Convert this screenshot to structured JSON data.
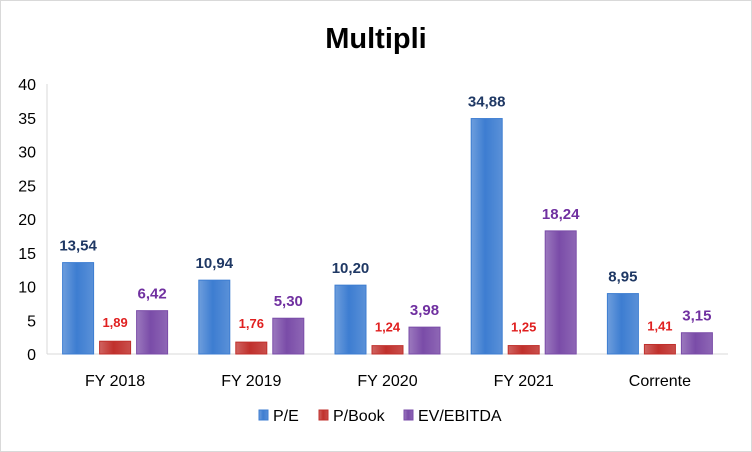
{
  "chart_data": {
    "type": "bar",
    "title": "Multipli",
    "categories": [
      "FY 2018",
      "FY 2019",
      "FY 2020",
      "FY 2021",
      "Corrente"
    ],
    "series": [
      {
        "name": "P/E",
        "values": [
          13.54,
          10.94,
          10.2,
          34.88,
          8.95
        ],
        "labels": [
          "13,54",
          "10,94",
          "10,20",
          "34,88",
          "8,95"
        ],
        "color": "#3d7dd1",
        "label_color": "#1f3864"
      },
      {
        "name": "P/Book",
        "values": [
          1.89,
          1.76,
          1.24,
          1.25,
          1.41
        ],
        "labels": [
          "1,89",
          "1,76",
          "1,24",
          "1,25",
          "1,41"
        ],
        "color": "#c0302c",
        "label_color": "#e02020"
      },
      {
        "name": "EV/EBITDA",
        "values": [
          6.42,
          5.3,
          3.98,
          18.24,
          3.15
        ],
        "labels": [
          "6,42",
          "5,30",
          "3,98",
          "18,24",
          "3,15"
        ],
        "color": "#7a4ca8",
        "label_color": "#7030a0"
      }
    ],
    "ylim": [
      0,
      40
    ],
    "yticks": [
      "0",
      "5",
      "10",
      "15",
      "20",
      "25",
      "30",
      "35",
      "40"
    ],
    "grid": false,
    "legend_position": "bottom"
  }
}
